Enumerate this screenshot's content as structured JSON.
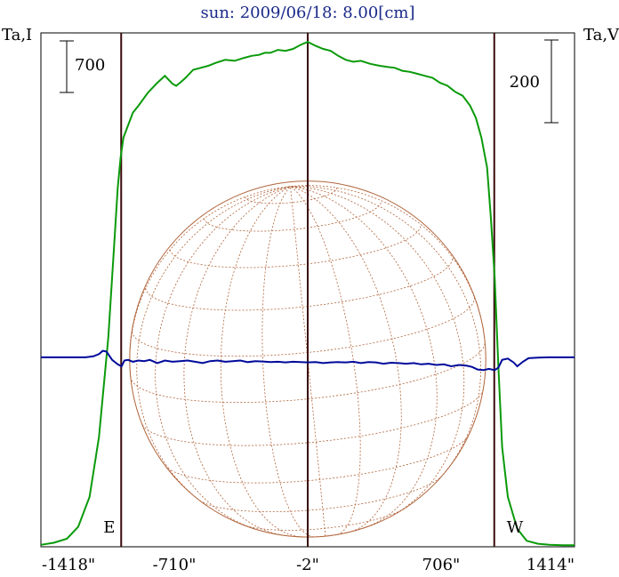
{
  "chart_data": {
    "type": "line",
    "title": "sun: 2009/06/18: 8.00[cm]",
    "y_left_label": "Ta,I",
    "y_right_label": "Ta,V",
    "x_ticks": [
      {
        "value": -1418,
        "label": "-1418\""
      },
      {
        "value": -710,
        "label": "-710\""
      },
      {
        "value": -2,
        "label": "-2\""
      },
      {
        "value": 706,
        "label": "706\""
      },
      {
        "value": 1414,
        "label": "1414\""
      }
    ],
    "xlim": [
      -1418,
      1414
    ],
    "left_scale_bar": {
      "label": "700",
      "value": 700
    },
    "right_scale_bar": {
      "label": "200",
      "value": 200
    },
    "limb_markers": [
      {
        "label": "E",
        "x": -992
      },
      {
        "label": "W",
        "x": 988
      }
    ],
    "center_line_x": -2,
    "sun_radius_arcsec": 945,
    "colors": {
      "stokes_I": "#0a9a0a",
      "stokes_V": "#000a9a",
      "limb_lines": "#3a0a0a",
      "disk": "#b0643a",
      "frame": "#000000",
      "title": "#1a2a8a"
    },
    "series": [
      {
        "key": "I",
        "axis": "left",
        "ylim": [
          0,
          5150
        ],
        "x": [
          -1418,
          -1350,
          -1280,
          -1220,
          -1160,
          -1110,
          -1060,
          -1030,
          -1010,
          -995,
          -980,
          -960,
          -930,
          -900,
          -850,
          -800,
          -760,
          -720,
          -700,
          -680,
          -650,
          -610,
          -570,
          -530,
          -490,
          -440,
          -390,
          -340,
          -300,
          -260,
          -230,
          -200,
          -160,
          -120,
          -80,
          -40,
          -2,
          40,
          80,
          120,
          160,
          200,
          240,
          280,
          330,
          380,
          420,
          460,
          500,
          540,
          580,
          620,
          660,
          700,
          740,
          780,
          820,
          860,
          890,
          920,
          950,
          970,
          990,
          1010,
          1030,
          1060,
          1110,
          1160,
          1220,
          1280,
          1350,
          1414
        ],
        "values": [
          20,
          40,
          80,
          200,
          500,
          1100,
          2100,
          3000,
          3600,
          3900,
          4100,
          4200,
          4350,
          4420,
          4550,
          4650,
          4720,
          4640,
          4620,
          4650,
          4700,
          4780,
          4800,
          4820,
          4850,
          4880,
          4870,
          4900,
          4920,
          4930,
          4950,
          4950,
          4980,
          4970,
          4990,
          5030,
          5060,
          5020,
          4990,
          4970,
          4920,
          4880,
          4860,
          4870,
          4840,
          4820,
          4810,
          4800,
          4770,
          4760,
          4740,
          4720,
          4700,
          4650,
          4620,
          4560,
          4520,
          4420,
          4300,
          4100,
          3800,
          3300,
          2700,
          1800,
          1000,
          500,
          180,
          60,
          30,
          20,
          15,
          15
        ]
      },
      {
        "key": "V",
        "axis": "right",
        "ylim": [
          -590,
          1010
        ],
        "x": [
          -1418,
          -1300,
          -1180,
          -1140,
          -1110,
          -1090,
          -1070,
          -1040,
          -1010,
          -990,
          -975,
          -955,
          -930,
          -900,
          -870,
          -840,
          -800,
          -760,
          -720,
          -680,
          -640,
          -600,
          -560,
          -520,
          -480,
          -440,
          -400,
          -360,
          -320,
          -280,
          -240,
          -200,
          -160,
          -120,
          -80,
          -40,
          -2,
          40,
          80,
          120,
          160,
          200,
          240,
          280,
          320,
          360,
          400,
          440,
          480,
          520,
          560,
          600,
          640,
          680,
          720,
          760,
          800,
          840,
          870,
          900,
          930,
          960,
          990,
          1010,
          1030,
          1060,
          1090,
          1110,
          1140,
          1170,
          1220,
          1280,
          1350,
          1414
        ],
        "values": [
          0,
          0,
          0,
          3,
          10,
          20,
          18,
          -8,
          -22,
          -28,
          -10,
          -8,
          -14,
          -10,
          -12,
          -8,
          -18,
          -10,
          -14,
          -12,
          -10,
          -14,
          -18,
          -12,
          -10,
          -14,
          -12,
          -10,
          -15,
          -12,
          -13,
          -15,
          -14,
          -16,
          -14,
          -15,
          -16,
          -15,
          -18,
          -16,
          -15,
          -16,
          -14,
          -18,
          -15,
          -16,
          -20,
          -17,
          -18,
          -20,
          -18,
          -22,
          -20,
          -24,
          -22,
          -28,
          -24,
          -26,
          -30,
          -38,
          -40,
          -36,
          -40,
          -32,
          -8,
          -4,
          -16,
          -28,
          -14,
          -3,
          -1,
          0,
          0,
          0
        ]
      }
    ]
  }
}
